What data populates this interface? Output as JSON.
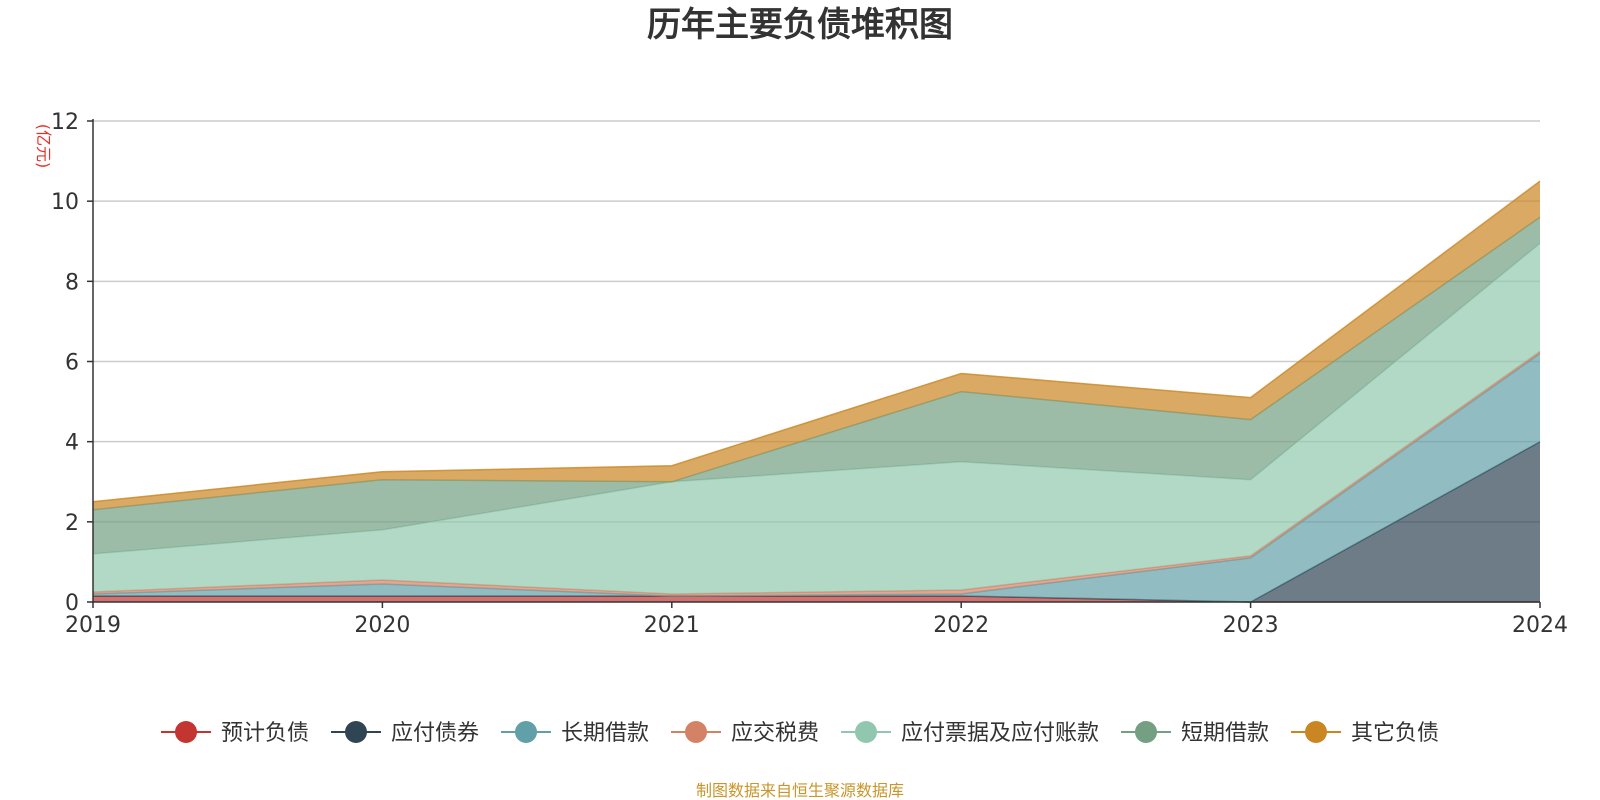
{
  "chart_data": {
    "type": "area",
    "stacked": true,
    "title": "历年主要负债堆积图",
    "unit": "(亿元)",
    "x": [
      "2019",
      "2020",
      "2021",
      "2022",
      "2023",
      "2024"
    ],
    "ylim": [
      0,
      12
    ],
    "yticks": [
      0,
      2,
      4,
      6,
      8,
      10,
      12
    ],
    "grid": true,
    "legend_position": "bottom",
    "series": [
      {
        "name": "预计负债",
        "color": "#c23531",
        "values": [
          0.15,
          0.15,
          0.15,
          0.15,
          0.0,
          0.0
        ]
      },
      {
        "name": "应付债券",
        "color": "#2f4554",
        "values": [
          0.0,
          0.0,
          0.0,
          0.0,
          0.0,
          4.0
        ]
      },
      {
        "name": "长期借款",
        "color": "#61a0a8",
        "values": [
          0.05,
          0.3,
          0.0,
          0.05,
          1.1,
          2.2
        ]
      },
      {
        "name": "应交税费",
        "color": "#d48265",
        "values": [
          0.05,
          0.1,
          0.05,
          0.1,
          0.05,
          0.05
        ]
      },
      {
        "name": "应付票据及应付账款",
        "color": "#91c7ae",
        "values": [
          0.95,
          1.25,
          2.8,
          3.2,
          1.9,
          2.7
        ]
      },
      {
        "name": "短期借款",
        "color": "#749f83",
        "values": [
          1.1,
          1.25,
          0.0,
          1.75,
          1.5,
          0.65
        ]
      },
      {
        "name": "其它负债",
        "color": "#ca8622",
        "values": [
          0.2,
          0.2,
          0.4,
          0.45,
          0.55,
          0.9
        ]
      }
    ]
  },
  "footer": {
    "source": "制图数据来自恒生聚源数据库"
  }
}
